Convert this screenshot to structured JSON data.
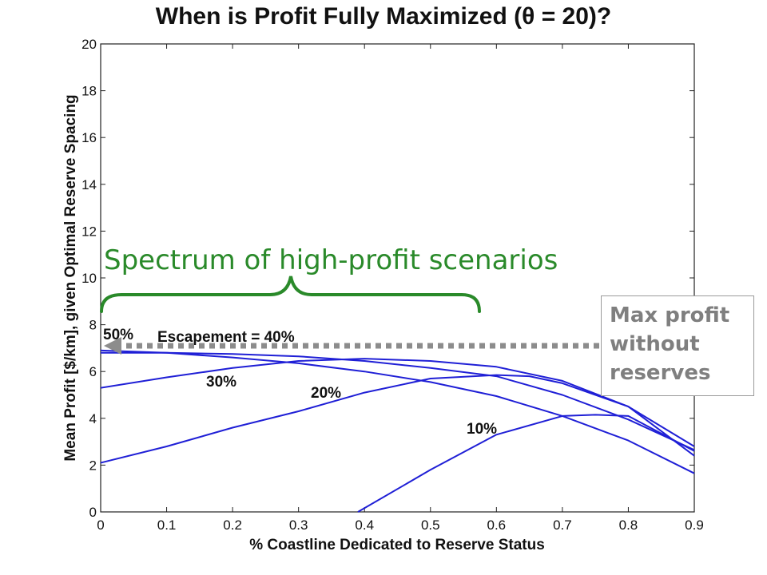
{
  "chart_data": {
    "type": "line",
    "title": "When is Profit Fully Maximized (θ = 20)?",
    "xlabel": "% Coastline Dedicated to Reserve Status",
    "ylabel": "Mean Profit [$/km], given Optimal Reserve Spacing",
    "xlim": [
      0,
      0.9
    ],
    "ylim": [
      0,
      20
    ],
    "xticks": [
      "0",
      "0.1",
      "0.2",
      "0.3",
      "0.4",
      "0.5",
      "0.6",
      "0.7",
      "0.8",
      "0.9"
    ],
    "yticks": [
      "0",
      "2",
      "4",
      "6",
      "8",
      "10",
      "12",
      "14",
      "16",
      "18",
      "20"
    ],
    "grid": false,
    "series": [
      {
        "name": "10%",
        "x": [
          0.39,
          0.5,
          0.6,
          0.7,
          0.75,
          0.8,
          0.9
        ],
        "y": [
          0.0,
          1.8,
          3.3,
          4.1,
          4.15,
          4.1,
          2.6
        ]
      },
      {
        "name": "20%",
        "x": [
          0,
          0.1,
          0.2,
          0.3,
          0.4,
          0.5,
          0.6,
          0.65,
          0.7,
          0.8,
          0.9
        ],
        "y": [
          2.1,
          2.8,
          3.6,
          4.3,
          5.1,
          5.7,
          5.85,
          5.8,
          5.5,
          4.5,
          2.4
        ]
      },
      {
        "name": "30%",
        "x": [
          0,
          0.1,
          0.2,
          0.3,
          0.4,
          0.5,
          0.6,
          0.7,
          0.8,
          0.9
        ],
        "y": [
          5.3,
          5.75,
          6.15,
          6.45,
          6.55,
          6.45,
          6.2,
          5.6,
          4.5,
          2.8
        ]
      },
      {
        "name": "Escapement = 40%",
        "x": [
          0,
          0.1,
          0.2,
          0.3,
          0.4,
          0.5,
          0.6,
          0.7,
          0.8,
          0.9
        ],
        "y": [
          6.8,
          6.8,
          6.75,
          6.65,
          6.45,
          6.15,
          5.8,
          5.0,
          3.95,
          2.65
        ]
      },
      {
        "name": "50%",
        "x": [
          0,
          0.1,
          0.2,
          0.3,
          0.4,
          0.5,
          0.6,
          0.7,
          0.8,
          0.9
        ],
        "y": [
          6.9,
          6.8,
          6.6,
          6.35,
          6.0,
          5.55,
          4.95,
          4.1,
          3.05,
          1.65
        ]
      }
    ],
    "annotations": {
      "bracket_text": "Spectrum of high-profit scenarios",
      "callout_lines": [
        "Max profit",
        "without",
        "reserves"
      ]
    },
    "colors": {
      "series": "#1f1fd6",
      "annotation": "#2a8a2a",
      "callout_text": "#7f7f7f",
      "arrow": "#8c8c8c"
    }
  }
}
